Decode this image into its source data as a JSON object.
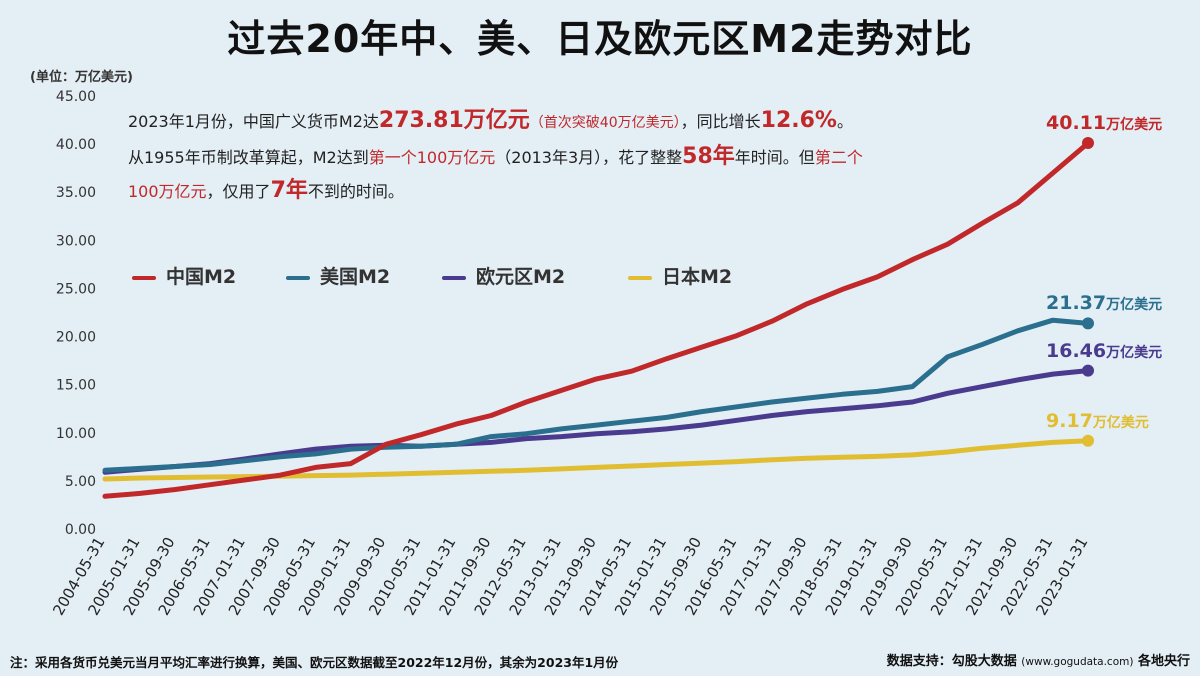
{
  "title": "过去20年中、美、日及欧元区M2走势对比",
  "unit_label": "(单位：万亿美元)",
  "annotation": {
    "p1": "2023年1月份，中国广义货币M2达",
    "v1": "273.81万亿元",
    "p2": "（首次突破40万亿美元）",
    "p3": "，同比增长",
    "v2": "12.6%",
    "p4": "。从1955年币制改革算起，M2达到",
    "r1": "第一个100万亿元",
    "p5": "（2013年3月），花了整整",
    "v3": "58年",
    "p6": "年时间。但",
    "r2": "第二个100万亿元",
    "p7": "，仅用了",
    "v4": "7年",
    "p8": "不到的时间。"
  },
  "legend": [
    {
      "label": "中国M2",
      "color": "#c0282a"
    },
    {
      "label": "美国M2",
      "color": "#2a6f8e"
    },
    {
      "label": "欧元区M2",
      "color": "#4a3b8f"
    },
    {
      "label": "日本M2",
      "color": "#e1bd32"
    }
  ],
  "end_labels": [
    {
      "value": "40.11",
      "unit": "万亿美元",
      "color": "#c0282a"
    },
    {
      "value": "21.37",
      "unit": "万亿美元",
      "color": "#2a6f8e"
    },
    {
      "value": "16.46",
      "unit": "万亿美元",
      "color": "#4a3b8f"
    },
    {
      "value": "9.17",
      "unit": "万亿美元",
      "color": "#e1bd32"
    }
  ],
  "footnote": "注：采用各货币兑美元当月平均汇率进行换算，美国、欧元区数据截至2022年12月份，其余为2023年1月份",
  "source": {
    "prefix": "数据支持：勾股大数据",
    "url": "(www.gogudata.com)",
    "suffix": "各地央行"
  },
  "chart_data": {
    "type": "line",
    "ylim": [
      0,
      45
    ],
    "yticks": [
      "0.00",
      "5.00",
      "10.00",
      "15.00",
      "20.00",
      "25.00",
      "30.00",
      "35.00",
      "40.00",
      "45.00"
    ],
    "categories": [
      "2004-05-31",
      "2005-01-31",
      "2005-09-30",
      "2006-05-31",
      "2007-01-31",
      "2007-09-30",
      "2008-05-31",
      "2009-01-31",
      "2009-09-30",
      "2010-05-31",
      "2011-01-31",
      "2011-09-30",
      "2012-05-31",
      "2013-01-31",
      "2013-09-30",
      "2014-05-31",
      "2015-01-31",
      "2015-09-30",
      "2016-05-31",
      "2017-01-31",
      "2017-09-30",
      "2018-05-31",
      "2019-01-31",
      "2019-09-30",
      "2020-05-31",
      "2021-01-31",
      "2021-09-30",
      "2022-05-31",
      "2023-01-31"
    ],
    "series": [
      {
        "name": "中国M2",
        "color": "#c0282a",
        "values": [
          3.4,
          3.7,
          4.1,
          4.6,
          5.1,
          5.6,
          6.4,
          6.8,
          8.8,
          9.8,
          10.9,
          11.8,
          13.2,
          14.4,
          15.6,
          16.4,
          17.7,
          18.9,
          20.1,
          21.6,
          23.4,
          24.9,
          26.2,
          28.0,
          29.6,
          31.8,
          33.9,
          37.0,
          40.11
        ]
      },
      {
        "name": "美国M2",
        "color": "#2a6f8e",
        "values": [
          6.1,
          6.3,
          6.5,
          6.7,
          7.1,
          7.5,
          7.8,
          8.3,
          8.5,
          8.6,
          8.8,
          9.6,
          9.9,
          10.4,
          10.8,
          11.2,
          11.6,
          12.2,
          12.7,
          13.2,
          13.6,
          14.0,
          14.3,
          14.8,
          17.9,
          19.2,
          20.6,
          21.7,
          21.37
        ]
      },
      {
        "name": "欧元区M2",
        "color": "#4a3b8f",
        "values": [
          5.9,
          6.2,
          6.5,
          6.8,
          7.3,
          7.8,
          8.3,
          8.6,
          8.7,
          8.6,
          8.8,
          9.0,
          9.4,
          9.6,
          9.9,
          10.1,
          10.4,
          10.8,
          11.3,
          11.8,
          12.2,
          12.5,
          12.8,
          13.2,
          14.1,
          14.8,
          15.5,
          16.1,
          16.46
        ]
      },
      {
        "name": "日本M2",
        "color": "#e1bd32",
        "values": [
          5.2,
          5.3,
          5.35,
          5.4,
          5.45,
          5.5,
          5.55,
          5.6,
          5.7,
          5.8,
          5.9,
          6.0,
          6.1,
          6.25,
          6.4,
          6.55,
          6.7,
          6.85,
          7.0,
          7.2,
          7.35,
          7.45,
          7.55,
          7.7,
          8.0,
          8.4,
          8.7,
          9.0,
          9.17
        ]
      }
    ]
  }
}
